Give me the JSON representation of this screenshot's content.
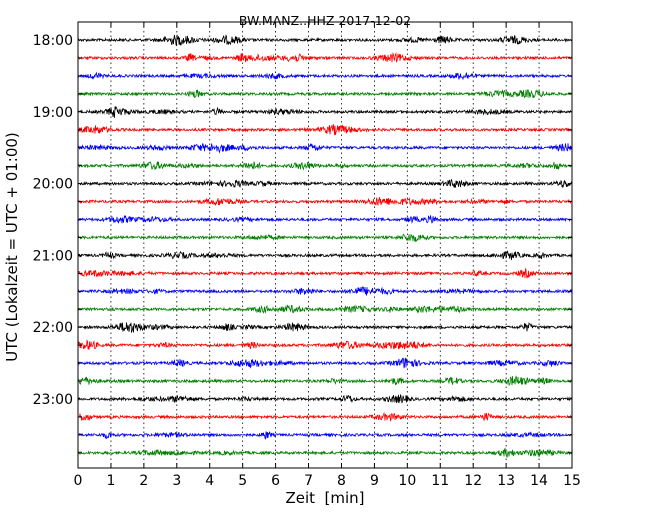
{
  "chart_data": {
    "type": "line",
    "title": "BW.MANZ..HHZ 2017-12-02",
    "xlabel": "Zeit  [min]",
    "ylabel": "UTC (Lokalzeit = UTC + 01:00)",
    "xlim": [
      0,
      15
    ],
    "x_ticks": [
      "0",
      "1",
      "2",
      "3",
      "4",
      "5",
      "6",
      "7",
      "8",
      "9",
      "10",
      "11",
      "12",
      "13",
      "14",
      "15"
    ],
    "y_ticks": [
      "18:00",
      "19:00",
      "20:00",
      "21:00",
      "22:00",
      "23:00"
    ],
    "trace_start_times": [
      "18:00",
      "18:15",
      "18:30",
      "18:45",
      "19:00",
      "19:15",
      "19:30",
      "19:45",
      "20:00",
      "20:15",
      "20:30",
      "20:45",
      "21:00",
      "21:15",
      "21:30",
      "21:45",
      "22:00",
      "22:15",
      "22:30",
      "22:45",
      "23:00",
      "23:15",
      "23:30",
      "23:45"
    ],
    "series_colors": [
      "#000000",
      "#ff0000",
      "#0000ff",
      "#008000"
    ],
    "grid": "vertical dotted at each minute"
  }
}
